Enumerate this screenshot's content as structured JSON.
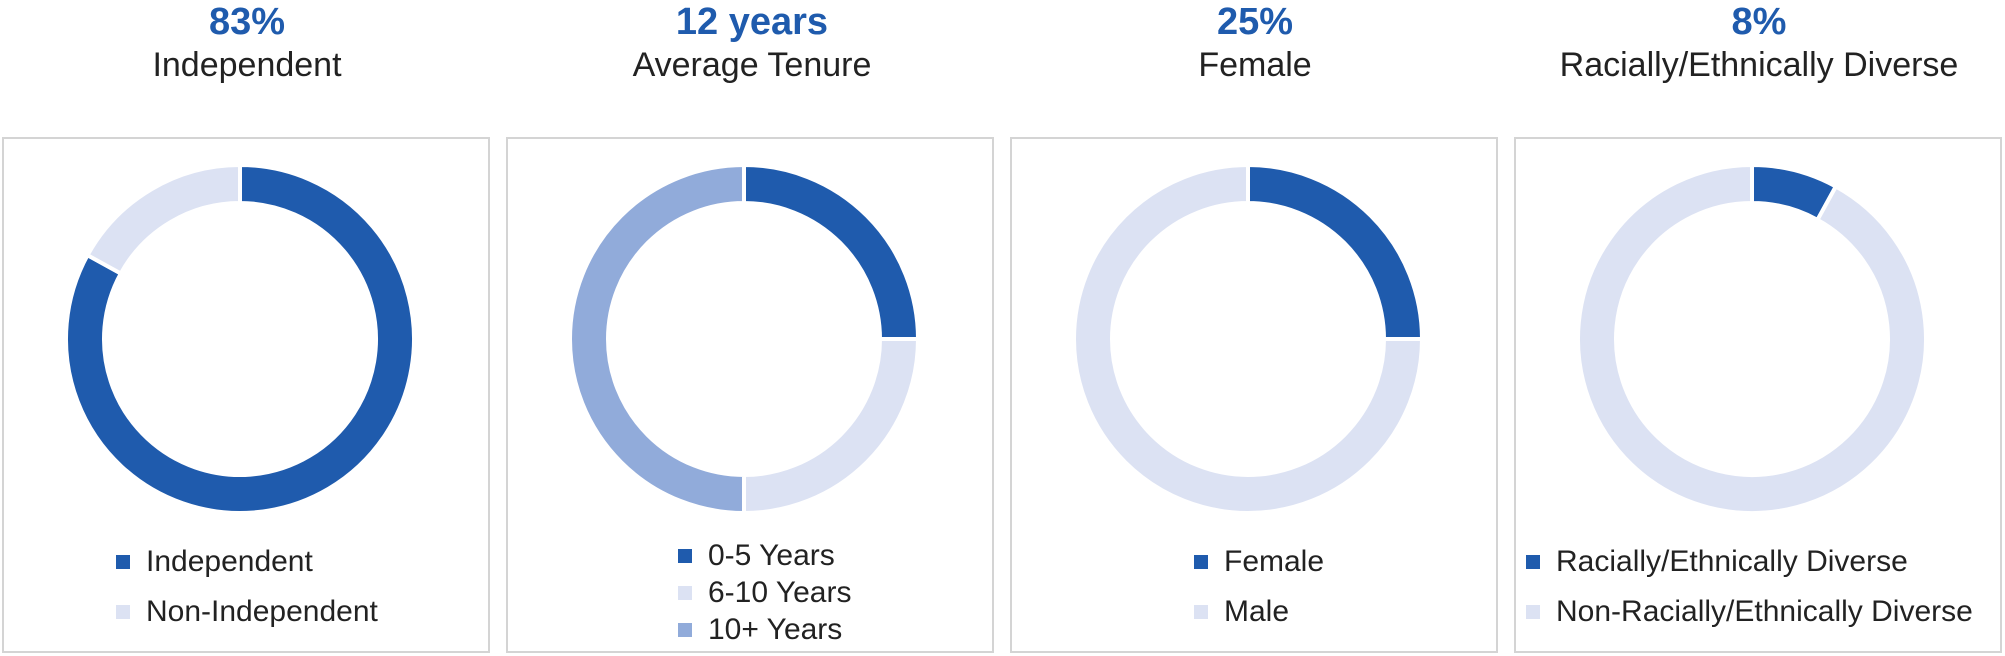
{
  "chart_data": [
    {
      "type": "donut",
      "headline": "83%",
      "title": "Independent",
      "slices": [
        {
          "label": "Independent",
          "value": 83,
          "color": "#1f5bad"
        },
        {
          "label": "Non-Independent",
          "value": 17,
          "color": "#dce2f3"
        }
      ],
      "legend_position": "bottom"
    },
    {
      "type": "donut",
      "headline": "12 years",
      "title": "Average Tenure",
      "slices": [
        {
          "label": "0-5 Years",
          "value": 25,
          "color": "#1f5bad"
        },
        {
          "label": "6-10 Years",
          "value": 25,
          "color": "#dce2f3"
        },
        {
          "label": "10+ Years",
          "value": 50,
          "color": "#91abda"
        }
      ],
      "legend_position": "bottom"
    },
    {
      "type": "donut",
      "headline": "25%",
      "title": "Female",
      "slices": [
        {
          "label": "Female",
          "value": 25,
          "color": "#1f5bad"
        },
        {
          "label": "Male",
          "value": 75,
          "color": "#dce2f3"
        }
      ],
      "legend_position": "bottom"
    },
    {
      "type": "donut",
      "headline": "8%",
      "title": "Racially/Ethnically Diverse",
      "slices": [
        {
          "label": "Racially/Ethnically Diverse",
          "value": 8,
          "color": "#1f5bad"
        },
        {
          "label": "Non-Racially/Ethnically Diverse",
          "value": 92,
          "color": "#dce2f3"
        }
      ],
      "legend_position": "bottom"
    }
  ]
}
